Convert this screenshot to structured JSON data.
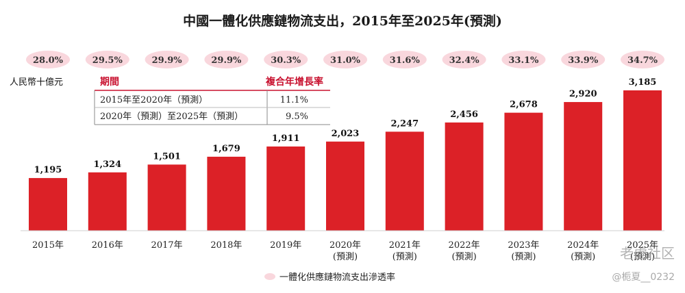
{
  "chart_data": {
    "type": "bar",
    "title": "中國一體化供應鏈物流支出，2015年至2025年(預測)",
    "unit_label": "人民幣十億元",
    "categories": [
      [
        "2015年"
      ],
      [
        "2016年"
      ],
      [
        "2017年"
      ],
      [
        "2018年"
      ],
      [
        "2019年"
      ],
      [
        "2020年",
        "(預測)"
      ],
      [
        "2021年",
        "(預測)"
      ],
      [
        "2022年",
        "(預測)"
      ],
      [
        "2023年",
        "(預測)"
      ],
      [
        "2024年",
        "(預測)"
      ],
      [
        "2025年",
        "(預測)"
      ]
    ],
    "values": [
      1195,
      1324,
      1501,
      1679,
      1911,
      2023,
      2247,
      2456,
      2678,
      2920,
      3185
    ],
    "value_labels": [
      "1,195",
      "1,324",
      "1,501",
      "1,679",
      "1,911",
      "2,023",
      "2,247",
      "2,456",
      "2,678",
      "2,920",
      "3,185"
    ],
    "penetration_rates": [
      "28.0%",
      "29.5%",
      "29.9%",
      "29.9%",
      "30.3%",
      "31.0%",
      "31.6%",
      "32.4%",
      "33.1%",
      "33.9%",
      "34.7%"
    ],
    "ylim": [
      0,
      3185
    ],
    "bar_color": "#dc2127",
    "rate_badge_color": "#f9d7dd",
    "legend": {
      "label": "一體化供應鏈物流支出滲透率",
      "color": "#f9d7dd",
      "position": "bottom"
    },
    "cagr_table": {
      "headers": [
        "期間",
        "複合年增長率"
      ],
      "rows": [
        [
          "2015年至2020年（預測）",
          "11.1%"
        ],
        [
          "2020年（預測）至2025年（預測）",
          "9.5%"
        ]
      ]
    }
  },
  "watermarks": [
    "老虎社区",
    "@栀夏__0232"
  ]
}
